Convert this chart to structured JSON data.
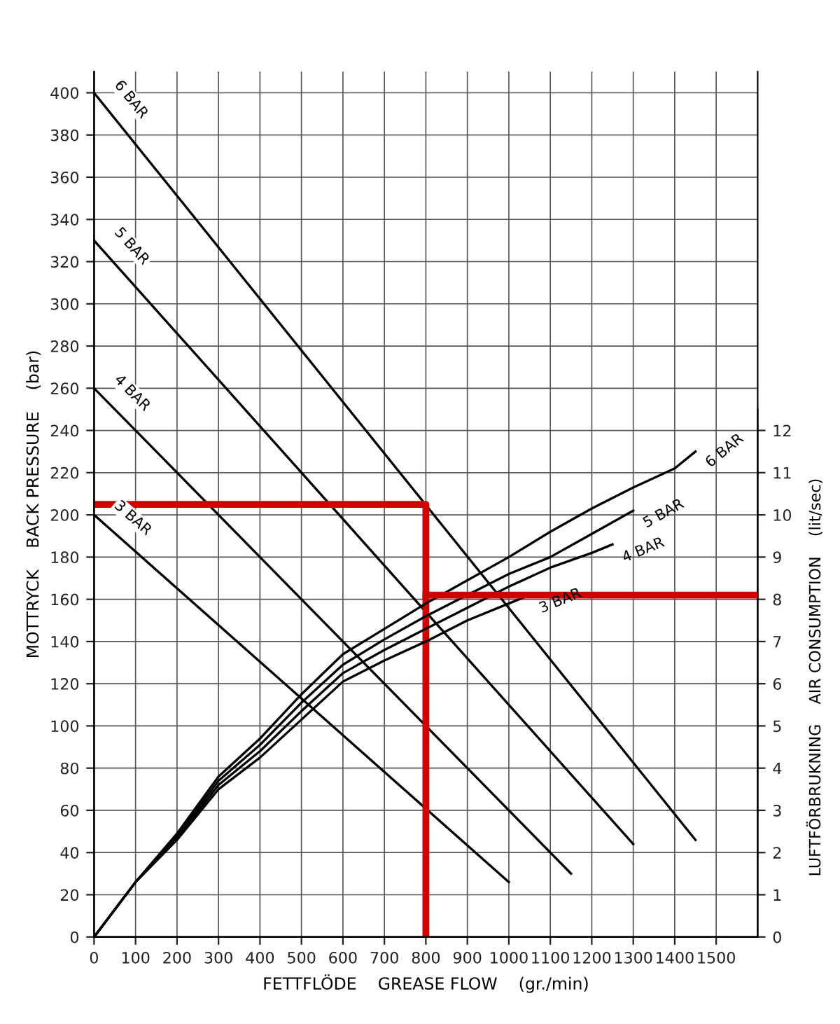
{
  "chart_data": {
    "type": "line",
    "xlabel": "FETTFLÖDE    GREASE FLOW    (gr./min)",
    "ylabel": "MOTTRYCK    BACK PRESSURE    (bar)",
    "y2label": "LUFTFÖRBRUKNING    AIR CONSUMPTION    (lit/sec)",
    "xlim": [
      0,
      1600
    ],
    "xticks": [
      0,
      100,
      200,
      300,
      400,
      500,
      600,
      700,
      800,
      900,
      1000,
      1100,
      1200,
      1300,
      1400,
      1500
    ],
    "ylim": [
      0,
      410
    ],
    "yticks": [
      0,
      20,
      40,
      60,
      80,
      100,
      120,
      140,
      160,
      180,
      200,
      220,
      240,
      260,
      280,
      300,
      320,
      340,
      360,
      380,
      400
    ],
    "y2lim": [
      0,
      20.5
    ],
    "y2ticks": [
      0,
      1,
      2,
      3,
      4,
      5,
      6,
      7,
      8,
      9,
      10,
      11,
      12
    ],
    "grid": true,
    "legend": false,
    "line_style": "solid",
    "marker": "none",
    "series": [
      {
        "name": "6 BAR",
        "color": "#000000",
        "x": [
          0,
          1450
        ],
        "values": [
          400,
          46
        ]
      },
      {
        "name": "5 BAR",
        "color": "#000000",
        "x": [
          0,
          1300
        ],
        "values": [
          330,
          44
        ]
      },
      {
        "name": "4 BAR",
        "color": "#000000",
        "x": [
          0,
          1150
        ],
        "values": [
          260,
          30
        ]
      },
      {
        "name": "3 BAR",
        "color": "#000000",
        "x": [
          0,
          1000
        ],
        "values": [
          200,
          26
        ]
      },
      {
        "name": "6 BAR",
        "color": "#000000",
        "axis": "y2",
        "x": [
          0,
          100,
          200,
          300,
          400,
          500,
          600,
          700,
          800,
          900,
          1000,
          1100,
          1200,
          1300,
          1400,
          1450
        ],
        "values": [
          0,
          1.3,
          2.45,
          3.8,
          4.7,
          5.75,
          6.7,
          7.3,
          7.9,
          8.45,
          9.0,
          9.6,
          10.15,
          10.65,
          11.1,
          11.5
        ]
      },
      {
        "name": "5 BAR",
        "color": "#000000",
        "axis": "y2",
        "x": [
          0,
          100,
          200,
          300,
          400,
          500,
          600,
          700,
          800,
          900,
          1000,
          1100,
          1200,
          1300
        ],
        "values": [
          0,
          1.3,
          2.4,
          3.7,
          4.55,
          5.55,
          6.45,
          7.05,
          7.6,
          8.1,
          8.6,
          9.0,
          9.55,
          10.1
        ]
      },
      {
        "name": "4 BAR",
        "color": "#000000",
        "axis": "y2",
        "x": [
          0,
          100,
          200,
          300,
          400,
          500,
          600,
          700,
          800,
          900,
          1000,
          1100,
          1200,
          1250
        ],
        "values": [
          0,
          1.3,
          2.35,
          3.6,
          4.4,
          5.35,
          6.25,
          6.8,
          7.3,
          7.8,
          8.3,
          8.75,
          9.1,
          9.3
        ]
      },
      {
        "name": "3 BAR",
        "color": "#000000",
        "axis": "y2",
        "x": [
          0,
          100,
          200,
          300,
          400,
          500,
          600,
          700,
          800,
          900,
          1000,
          1050
        ],
        "values": [
          0,
          1.3,
          2.3,
          3.5,
          4.25,
          5.15,
          6.05,
          6.55,
          7.0,
          7.5,
          7.9,
          8.1
        ]
      },
      {
        "color": "#cc0000",
        "x": [
          0,
          800,
          800
        ],
        "values": [
          205,
          205,
          0
        ]
      },
      {
        "color": "#cc0000",
        "axis": "y2",
        "x": [
          800,
          1600
        ],
        "values": [
          8.1,
          8.1
        ]
      }
    ]
  }
}
